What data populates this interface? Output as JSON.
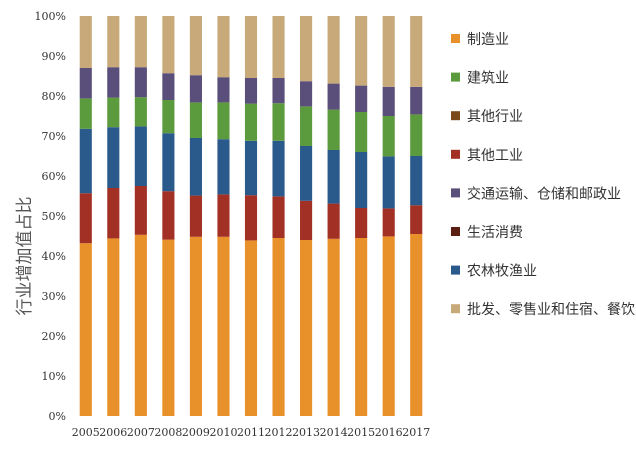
{
  "chart_data": {
    "type": "bar",
    "stacked": true,
    "percent": true,
    "title": "",
    "xlabel": "",
    "ylabel": "行业增加值占比",
    "ylim": [
      0,
      100
    ],
    "yticks": [
      "0%",
      "10%",
      "20%",
      "30%",
      "40%",
      "50%",
      "60%",
      "70%",
      "80%",
      "90%",
      "100%"
    ],
    "grid": false,
    "legend_position": "right",
    "categories": [
      "2005",
      "2006",
      "2007",
      "2008",
      "2009",
      "2010",
      "2011",
      "2012",
      "2013",
      "2014",
      "2015",
      "2016",
      "2017"
    ],
    "stack_order": [
      "制造业",
      "其他工业",
      "农林牧渔业",
      "建筑业",
      "交通运输、仓储和邮政业",
      "批发、零售业和住宿、餐饮业"
    ],
    "series": [
      {
        "name": "制造业",
        "color": "#E8902A",
        "values": [
          43.2,
          44.4,
          45.3,
          44.1,
          44.8,
          44.8,
          43.9,
          44.5,
          44.0,
          44.3,
          44.5,
          44.9,
          45.5
        ]
      },
      {
        "name": "其他工业",
        "color": "#A23024",
        "values": [
          12.5,
          12.6,
          12.2,
          12.1,
          10.3,
          10.6,
          11.3,
          10.4,
          9.8,
          8.8,
          7.5,
          7.0,
          7.2
        ]
      },
      {
        "name": "农林牧渔业",
        "color": "#2A5A8C",
        "values": [
          16.1,
          15.2,
          14.9,
          14.5,
          14.4,
          13.8,
          13.6,
          13.9,
          13.7,
          13.4,
          14.0,
          13.0,
          12.3
        ]
      },
      {
        "name": "建筑业",
        "color": "#5C9A3E",
        "values": [
          7.6,
          7.4,
          7.3,
          8.3,
          8.9,
          9.2,
          9.3,
          9.4,
          9.9,
          10.1,
          10.0,
          10.1,
          10.4
        ]
      },
      {
        "name": "交通运输、仓储和邮政业",
        "color": "#5A4E7A",
        "values": [
          7.6,
          7.6,
          7.5,
          6.7,
          6.8,
          6.3,
          6.4,
          6.3,
          6.3,
          6.5,
          6.6,
          7.3,
          6.9
        ]
      },
      {
        "name": "批发、零售业和住宿、餐饮业",
        "color": "#C8A979",
        "values": [
          13.0,
          12.8,
          12.8,
          14.3,
          14.8,
          15.3,
          15.5,
          15.5,
          16.3,
          16.9,
          17.4,
          17.7,
          17.7
        ]
      }
    ]
  },
  "legend": [
    {
      "label": "制造业",
      "color": "#E8902A"
    },
    {
      "label": "建筑业",
      "color": "#5C9A3E"
    },
    {
      "label": "其他行业",
      "color": "#7A4A1A"
    },
    {
      "label": "其他工业",
      "color": "#A23024"
    },
    {
      "label": "交通运输、仓储和邮政业",
      "color": "#5A4E7A"
    },
    {
      "label": "生活消费",
      "color": "#5A1E12"
    },
    {
      "label": "农林牧渔业",
      "color": "#2A5A8C"
    },
    {
      "label": "批发、零售业和住宿、餐饮业",
      "color": "#C8A979"
    }
  ]
}
